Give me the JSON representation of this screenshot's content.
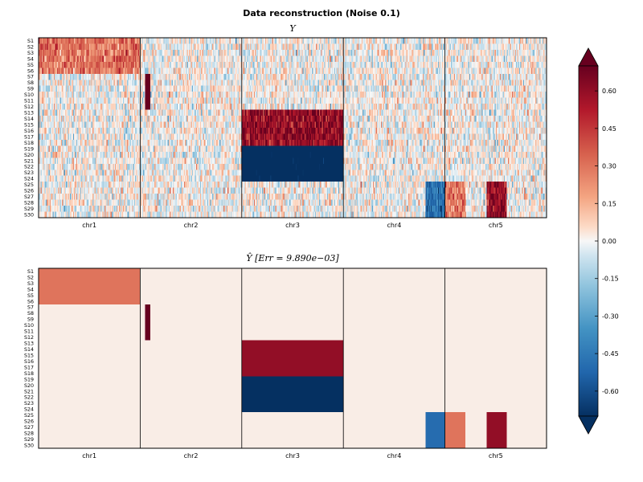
{
  "chart_data": {
    "type": "heatmap",
    "title": "Data reconstruction (Noise 0.1)",
    "colormap": {
      "name": "RdBu_r",
      "vmin": -0.7,
      "vmax": 0.7,
      "extend": "both",
      "ticks": [
        "-0.60",
        "-0.45",
        "-0.30",
        "-0.15",
        "0.00",
        "0.15",
        "0.30",
        "0.45",
        "0.60"
      ],
      "tick_values": [
        -0.6,
        -0.45,
        -0.3,
        -0.15,
        0,
        0.15,
        0.3,
        0.45,
        0.6
      ]
    },
    "samples": [
      "S1",
      "S2",
      "S3",
      "S4",
      "S5",
      "S6",
      "S7",
      "S8",
      "S9",
      "S10",
      "S11",
      "S12",
      "S13",
      "S14",
      "S15",
      "S16",
      "S17",
      "S18",
      "S19",
      "S20",
      "S21",
      "S22",
      "S23",
      "S24",
      "S25",
      "S26",
      "S27",
      "S28",
      "S29",
      "S30"
    ],
    "chromosomes": [
      "chr1",
      "chr2",
      "chr3",
      "chr4",
      "chr5"
    ],
    "panels": [
      {
        "title": "Y",
        "kind": "noisy",
        "noise_std": 0.1,
        "blocks": [
          {
            "chromosome": "chr1",
            "samples": "S1-S6",
            "value": 0.3
          },
          {
            "chromosome": "chr2",
            "samples": "S7-S12",
            "value": 0.9
          },
          {
            "chromosome": "chr3",
            "samples": "S13-S18",
            "value": 0.6
          },
          {
            "chromosome": "chr3",
            "samples": "S19-S24",
            "value": -0.9
          },
          {
            "chromosome": "chr4",
            "samples": "S25-S30",
            "value": -0.5
          },
          {
            "chromosome": "chr5",
            "samples": "S25-S30",
            "value": 0.3
          },
          {
            "chromosome": "chr5",
            "samples": "S25-S30",
            "value": 0.6
          }
        ]
      },
      {
        "title": "Ŷ [Err = 9.890e−03]",
        "kind": "reconstruction",
        "blocks": [
          {
            "chromosome": "chr1",
            "samples": "S1-S6",
            "value": 0.3
          },
          {
            "chromosome": "chr2",
            "samples": "S7-S12",
            "value": 0.9
          },
          {
            "chromosome": "chr3",
            "samples": "S13-S18",
            "value": 0.6
          },
          {
            "chromosome": "chr3",
            "samples": "S19-S24",
            "value": -0.9
          },
          {
            "chromosome": "chr4",
            "samples": "S25-S30",
            "value": -0.5
          },
          {
            "chromosome": "chr5",
            "samples": "S25-S30",
            "value": 0.3
          },
          {
            "chromosome": "chr5",
            "samples": "S25-S30",
            "value": 0.6
          }
        ]
      }
    ]
  }
}
